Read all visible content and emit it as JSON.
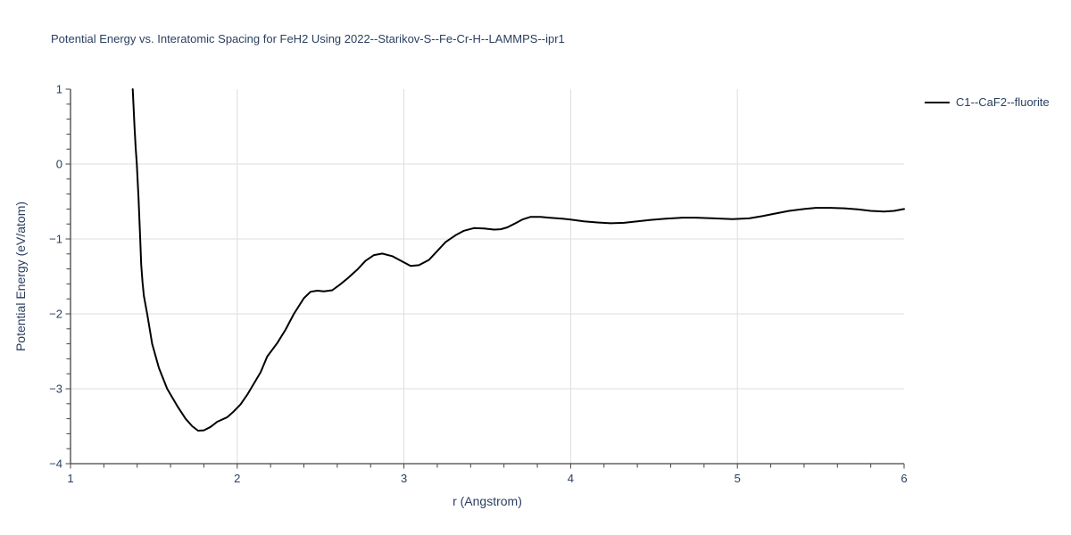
{
  "colors": {
    "background": "#ffffff",
    "text": "#2a3f5f",
    "grid": "#dedede",
    "axis": "#444444",
    "tick": "#444444",
    "series_line": "#000000"
  },
  "legend": {
    "items": [
      {
        "label": "C1--CaF2--fluorite",
        "color": "#000000"
      }
    ]
  },
  "chart_data": {
    "type": "line",
    "title": "Potential Energy vs. Interatomic Spacing for FeH2 Using 2022--Starikov-S--Fe-Cr-H--LAMMPS--ipr1",
    "xlabel": "r (Angstrom)",
    "ylabel": "Potential Energy (eV/atom)",
    "xlim": [
      1,
      6
    ],
    "ylim": [
      -4,
      1
    ],
    "xticks": [
      1,
      2,
      3,
      4,
      5,
      6
    ],
    "yticks": [
      1,
      0,
      -1,
      -2,
      -3,
      -4
    ],
    "minor_tick_step": 0.2,
    "grid": true,
    "legend_position": "top-right-outside",
    "series": [
      {
        "name": "C1--CaF2--fluorite",
        "color": "#000000",
        "points": [
          [
            1.373,
            1.0
          ],
          [
            1.378,
            0.78
          ],
          [
            1.384,
            0.5
          ],
          [
            1.391,
            0.22
          ],
          [
            1.398,
            0.0
          ],
          [
            1.408,
            -0.45
          ],
          [
            1.418,
            -1.0
          ],
          [
            1.424,
            -1.34
          ],
          [
            1.432,
            -1.58
          ],
          [
            1.44,
            -1.76
          ],
          [
            1.46,
            -2.0
          ],
          [
            1.49,
            -2.4
          ],
          [
            1.53,
            -2.72
          ],
          [
            1.58,
            -3.0
          ],
          [
            1.64,
            -3.23
          ],
          [
            1.69,
            -3.4
          ],
          [
            1.73,
            -3.5
          ],
          [
            1.765,
            -3.56
          ],
          [
            1.8,
            -3.555
          ],
          [
            1.84,
            -3.51
          ],
          [
            1.88,
            -3.44
          ],
          [
            1.94,
            -3.38
          ],
          [
            1.98,
            -3.3
          ],
          [
            2.02,
            -3.21
          ],
          [
            2.06,
            -3.08
          ],
          [
            2.1,
            -2.93
          ],
          [
            2.14,
            -2.78
          ],
          [
            2.18,
            -2.57
          ],
          [
            2.24,
            -2.39
          ],
          [
            2.29,
            -2.21
          ],
          [
            2.34,
            -2.0
          ],
          [
            2.4,
            -1.79
          ],
          [
            2.44,
            -1.705
          ],
          [
            2.48,
            -1.69
          ],
          [
            2.52,
            -1.7
          ],
          [
            2.57,
            -1.685
          ],
          [
            2.61,
            -1.62
          ],
          [
            2.66,
            -1.53
          ],
          [
            2.72,
            -1.41
          ],
          [
            2.77,
            -1.29
          ],
          [
            2.82,
            -1.215
          ],
          [
            2.87,
            -1.195
          ],
          [
            2.93,
            -1.23
          ],
          [
            2.99,
            -1.3
          ],
          [
            3.04,
            -1.36
          ],
          [
            3.09,
            -1.35
          ],
          [
            3.15,
            -1.28
          ],
          [
            3.2,
            -1.16
          ],
          [
            3.25,
            -1.04
          ],
          [
            3.31,
            -0.95
          ],
          [
            3.36,
            -0.89
          ],
          [
            3.42,
            -0.855
          ],
          [
            3.48,
            -0.86
          ],
          [
            3.54,
            -0.875
          ],
          [
            3.58,
            -0.87
          ],
          [
            3.62,
            -0.845
          ],
          [
            3.66,
            -0.8
          ],
          [
            3.71,
            -0.74
          ],
          [
            3.76,
            -0.705
          ],
          [
            3.82,
            -0.705
          ],
          [
            3.87,
            -0.715
          ],
          [
            3.95,
            -0.73
          ],
          [
            4.0,
            -0.74
          ],
          [
            4.08,
            -0.765
          ],
          [
            4.16,
            -0.78
          ],
          [
            4.24,
            -0.79
          ],
          [
            4.32,
            -0.785
          ],
          [
            4.4,
            -0.765
          ],
          [
            4.48,
            -0.745
          ],
          [
            4.57,
            -0.73
          ],
          [
            4.67,
            -0.715
          ],
          [
            4.75,
            -0.715
          ],
          [
            4.86,
            -0.725
          ],
          [
            4.97,
            -0.735
          ],
          [
            5.07,
            -0.725
          ],
          [
            5.15,
            -0.695
          ],
          [
            5.23,
            -0.66
          ],
          [
            5.31,
            -0.625
          ],
          [
            5.4,
            -0.6
          ],
          [
            5.47,
            -0.585
          ],
          [
            5.56,
            -0.585
          ],
          [
            5.64,
            -0.59
          ],
          [
            5.72,
            -0.605
          ],
          [
            5.8,
            -0.625
          ],
          [
            5.88,
            -0.635
          ],
          [
            5.94,
            -0.625
          ],
          [
            6.0,
            -0.6
          ]
        ]
      }
    ]
  }
}
